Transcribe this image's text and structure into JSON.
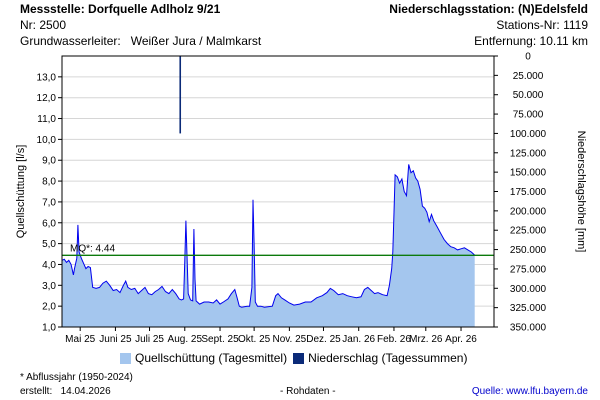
{
  "header": {
    "left_line1": "Messstelle: Dorfquelle Adlholz 9/21",
    "left_line2": "Nr: 2500",
    "left_line3_label": "Grundwasserleiter:",
    "left_line3_value": "Weißer Jura / Malmkarst",
    "right_line1": "Niederschlagsstation: (N)Edelsfeld",
    "right_line2": "Stations-Nr: 1119",
    "right_line3": "Entfernung: 10.11 km"
  },
  "legend": {
    "discharge": "Quellschüttung (Tagesmittel)",
    "precip": "Niederschlag (Tagessummen)"
  },
  "footer": {
    "note": "* Abflussjahr (1950-2024)",
    "created_label": "erstellt:",
    "created_date": "14.04.2026",
    "rawdata": "- Rohdaten -",
    "source_label": "Quelle:",
    "source_url": "www.lfu.bayern.de"
  },
  "colors": {
    "discharge_fill": "#a4c6ee",
    "discharge_line": "#0000ee",
    "precip": "#0b2a78",
    "mq_line": "#0c7a0c"
  },
  "chart_data": {
    "type": "area",
    "ylabel": "Quellschüttung [l/s]",
    "y2label": "Niederschlagshöhe [mm]",
    "ylim": [
      1.0,
      14.0
    ],
    "yticks": [
      "1,0",
      "2,0",
      "3,0",
      "4,0",
      "5,0",
      "6,0",
      "7,0",
      "8,0",
      "9,0",
      "10,0",
      "11,0",
      "12,0",
      "13,0"
    ],
    "y2lim": [
      0,
      350
    ],
    "y2ticks": [
      "0",
      "25.000",
      "50.000",
      "75.000",
      "100.000",
      "125.000",
      "150.000",
      "175.000",
      "200.000",
      "225.000",
      "250.000",
      "275.000",
      "300.000",
      "325.000",
      "350.000"
    ],
    "x_range": [
      "2025-04-15",
      "2026-04-30"
    ],
    "xticks": [
      {
        "date": "2025-05-01",
        "label": "Mai 25"
      },
      {
        "date": "2025-06-01",
        "label": "Juni 25"
      },
      {
        "date": "2025-07-01",
        "label": "Juli 25"
      },
      {
        "date": "2025-08-01",
        "label": "Aug. 25"
      },
      {
        "date": "2025-09-01",
        "label": "Sept. 25"
      },
      {
        "date": "2025-10-01",
        "label": "Okt. 25"
      },
      {
        "date": "2025-11-01",
        "label": "Nov. 25"
      },
      {
        "date": "2025-12-01",
        "label": "Dez. 25"
      },
      {
        "date": "2026-01-01",
        "label": "Jan. 26"
      },
      {
        "date": "2026-02-01",
        "label": "Feb. 26"
      },
      {
        "date": "2026-03-01",
        "label": "Mrz. 26"
      },
      {
        "date": "2026-04-01",
        "label": "Apr. 26"
      }
    ],
    "mq": {
      "label": "MQ*: 4.44",
      "value": 4.44
    },
    "series": [
      {
        "name": "Quellschüttung (Tagesmittel)",
        "type": "area",
        "points": [
          [
            "2025-04-15",
            4.2
          ],
          [
            "2025-04-17",
            4.25
          ],
          [
            "2025-04-19",
            4.1
          ],
          [
            "2025-04-21",
            4.2
          ],
          [
            "2025-04-23",
            4.0
          ],
          [
            "2025-04-25",
            3.5
          ],
          [
            "2025-04-26",
            3.8
          ],
          [
            "2025-04-28",
            4.3
          ],
          [
            "2025-04-29",
            5.9
          ],
          [
            "2025-04-30",
            4.6
          ],
          [
            "2025-05-02",
            4.3
          ],
          [
            "2025-05-04",
            4.05
          ],
          [
            "2025-05-06",
            3.8
          ],
          [
            "2025-05-08",
            3.9
          ],
          [
            "2025-05-10",
            3.85
          ],
          [
            "2025-05-12",
            2.9
          ],
          [
            "2025-05-15",
            2.85
          ],
          [
            "2025-05-18",
            2.9
          ],
          [
            "2025-05-21",
            3.1
          ],
          [
            "2025-05-24",
            3.2
          ],
          [
            "2025-05-27",
            3.0
          ],
          [
            "2025-05-30",
            2.75
          ],
          [
            "2025-06-02",
            2.8
          ],
          [
            "2025-06-05",
            2.65
          ],
          [
            "2025-06-08",
            3.0
          ],
          [
            "2025-06-10",
            3.2
          ],
          [
            "2025-06-12",
            2.9
          ],
          [
            "2025-06-15",
            2.8
          ],
          [
            "2025-06-18",
            2.85
          ],
          [
            "2025-06-21",
            2.6
          ],
          [
            "2025-06-24",
            2.75
          ],
          [
            "2025-06-27",
            2.9
          ],
          [
            "2025-06-30",
            2.6
          ],
          [
            "2025-07-03",
            2.55
          ],
          [
            "2025-07-06",
            2.7
          ],
          [
            "2025-07-09",
            2.8
          ],
          [
            "2025-07-12",
            2.95
          ],
          [
            "2025-07-15",
            2.7
          ],
          [
            "2025-07-18",
            2.6
          ],
          [
            "2025-07-21",
            2.8
          ],
          [
            "2025-07-24",
            2.6
          ],
          [
            "2025-07-27",
            2.35
          ],
          [
            "2025-07-29",
            2.3
          ],
          [
            "2025-07-31",
            2.35
          ],
          [
            "2025-08-01",
            4.2
          ],
          [
            "2025-08-02",
            6.1
          ],
          [
            "2025-08-03",
            4.3
          ],
          [
            "2025-08-04",
            2.6
          ],
          [
            "2025-08-06",
            2.3
          ],
          [
            "2025-08-08",
            2.25
          ],
          [
            "2025-08-09",
            5.7
          ],
          [
            "2025-08-10",
            3.3
          ],
          [
            "2025-08-11",
            2.25
          ],
          [
            "2025-08-14",
            2.1
          ],
          [
            "2025-08-18",
            2.2
          ],
          [
            "2025-08-22",
            2.2
          ],
          [
            "2025-08-26",
            2.15
          ],
          [
            "2025-08-29",
            2.3
          ],
          [
            "2025-09-01",
            2.1
          ],
          [
            "2025-09-04",
            2.2
          ],
          [
            "2025-09-08",
            2.35
          ],
          [
            "2025-09-11",
            2.6
          ],
          [
            "2025-09-14",
            2.8
          ],
          [
            "2025-09-16",
            2.4
          ],
          [
            "2025-09-18",
            2.0
          ],
          [
            "2025-09-20",
            1.95
          ],
          [
            "2025-09-23",
            1.98
          ],
          [
            "2025-09-25",
            2.0
          ],
          [
            "2025-09-27",
            2.0
          ],
          [
            "2025-09-29",
            2.9
          ],
          [
            "2025-09-30",
            7.1
          ],
          [
            "2025-10-01",
            5.0
          ],
          [
            "2025-10-02",
            2.2
          ],
          [
            "2025-10-04",
            2.0
          ],
          [
            "2025-10-07",
            2.0
          ],
          [
            "2025-10-10",
            1.95
          ],
          [
            "2025-10-14",
            1.98
          ],
          [
            "2025-10-17",
            2.0
          ],
          [
            "2025-10-20",
            2.5
          ],
          [
            "2025-10-22",
            2.6
          ],
          [
            "2025-10-25",
            2.4
          ],
          [
            "2025-10-28",
            2.3
          ],
          [
            "2025-11-01",
            2.15
          ],
          [
            "2025-11-05",
            2.05
          ],
          [
            "2025-11-10",
            2.1
          ],
          [
            "2025-11-15",
            2.2
          ],
          [
            "2025-11-20",
            2.2
          ],
          [
            "2025-11-25",
            2.4
          ],
          [
            "2025-11-30",
            2.5
          ],
          [
            "2025-12-04",
            2.65
          ],
          [
            "2025-12-07",
            2.85
          ],
          [
            "2025-12-10",
            2.75
          ],
          [
            "2025-12-14",
            2.55
          ],
          [
            "2025-12-18",
            2.6
          ],
          [
            "2025-12-22",
            2.5
          ],
          [
            "2025-12-26",
            2.45
          ],
          [
            "2025-12-30",
            2.4
          ],
          [
            "2026-01-03",
            2.45
          ],
          [
            "2026-01-06",
            2.8
          ],
          [
            "2026-01-09",
            2.9
          ],
          [
            "2026-01-12",
            2.75
          ],
          [
            "2026-01-15",
            2.6
          ],
          [
            "2026-01-18",
            2.65
          ],
          [
            "2026-01-22",
            2.55
          ],
          [
            "2026-01-26",
            2.5
          ],
          [
            "2026-01-28",
            3.0
          ],
          [
            "2026-01-30",
            3.8
          ],
          [
            "2026-01-31",
            4.6
          ],
          [
            "2026-02-01",
            6.5
          ],
          [
            "2026-02-02",
            8.3
          ],
          [
            "2026-02-04",
            8.2
          ],
          [
            "2026-02-06",
            7.9
          ],
          [
            "2026-02-08",
            8.1
          ],
          [
            "2026-02-10",
            7.5
          ],
          [
            "2026-02-12",
            7.3
          ],
          [
            "2026-02-14",
            8.8
          ],
          [
            "2026-02-16",
            8.4
          ],
          [
            "2026-02-18",
            8.5
          ],
          [
            "2026-02-20",
            8.15
          ],
          [
            "2026-02-22",
            8.0
          ],
          [
            "2026-02-24",
            7.6
          ],
          [
            "2026-02-26",
            6.8
          ],
          [
            "2026-02-28",
            6.7
          ],
          [
            "2026-03-02",
            6.5
          ],
          [
            "2026-03-04",
            6.05
          ],
          [
            "2026-03-06",
            6.4
          ],
          [
            "2026-03-08",
            6.1
          ],
          [
            "2026-03-11",
            5.8
          ],
          [
            "2026-03-14",
            5.5
          ],
          [
            "2026-03-17",
            5.2
          ],
          [
            "2026-03-20",
            5.0
          ],
          [
            "2026-03-23",
            4.85
          ],
          [
            "2026-03-26",
            4.8
          ],
          [
            "2026-03-29",
            4.7
          ],
          [
            "2026-04-01",
            4.75
          ],
          [
            "2026-04-04",
            4.8
          ],
          [
            "2026-04-07",
            4.7
          ],
          [
            "2026-04-10",
            4.6
          ],
          [
            "2026-04-13",
            4.45
          ]
        ]
      },
      {
        "name": "Niederschlag (Tagessummen)",
        "type": "bar",
        "points": [
          [
            "2025-07-28",
            100
          ]
        ]
      }
    ]
  }
}
